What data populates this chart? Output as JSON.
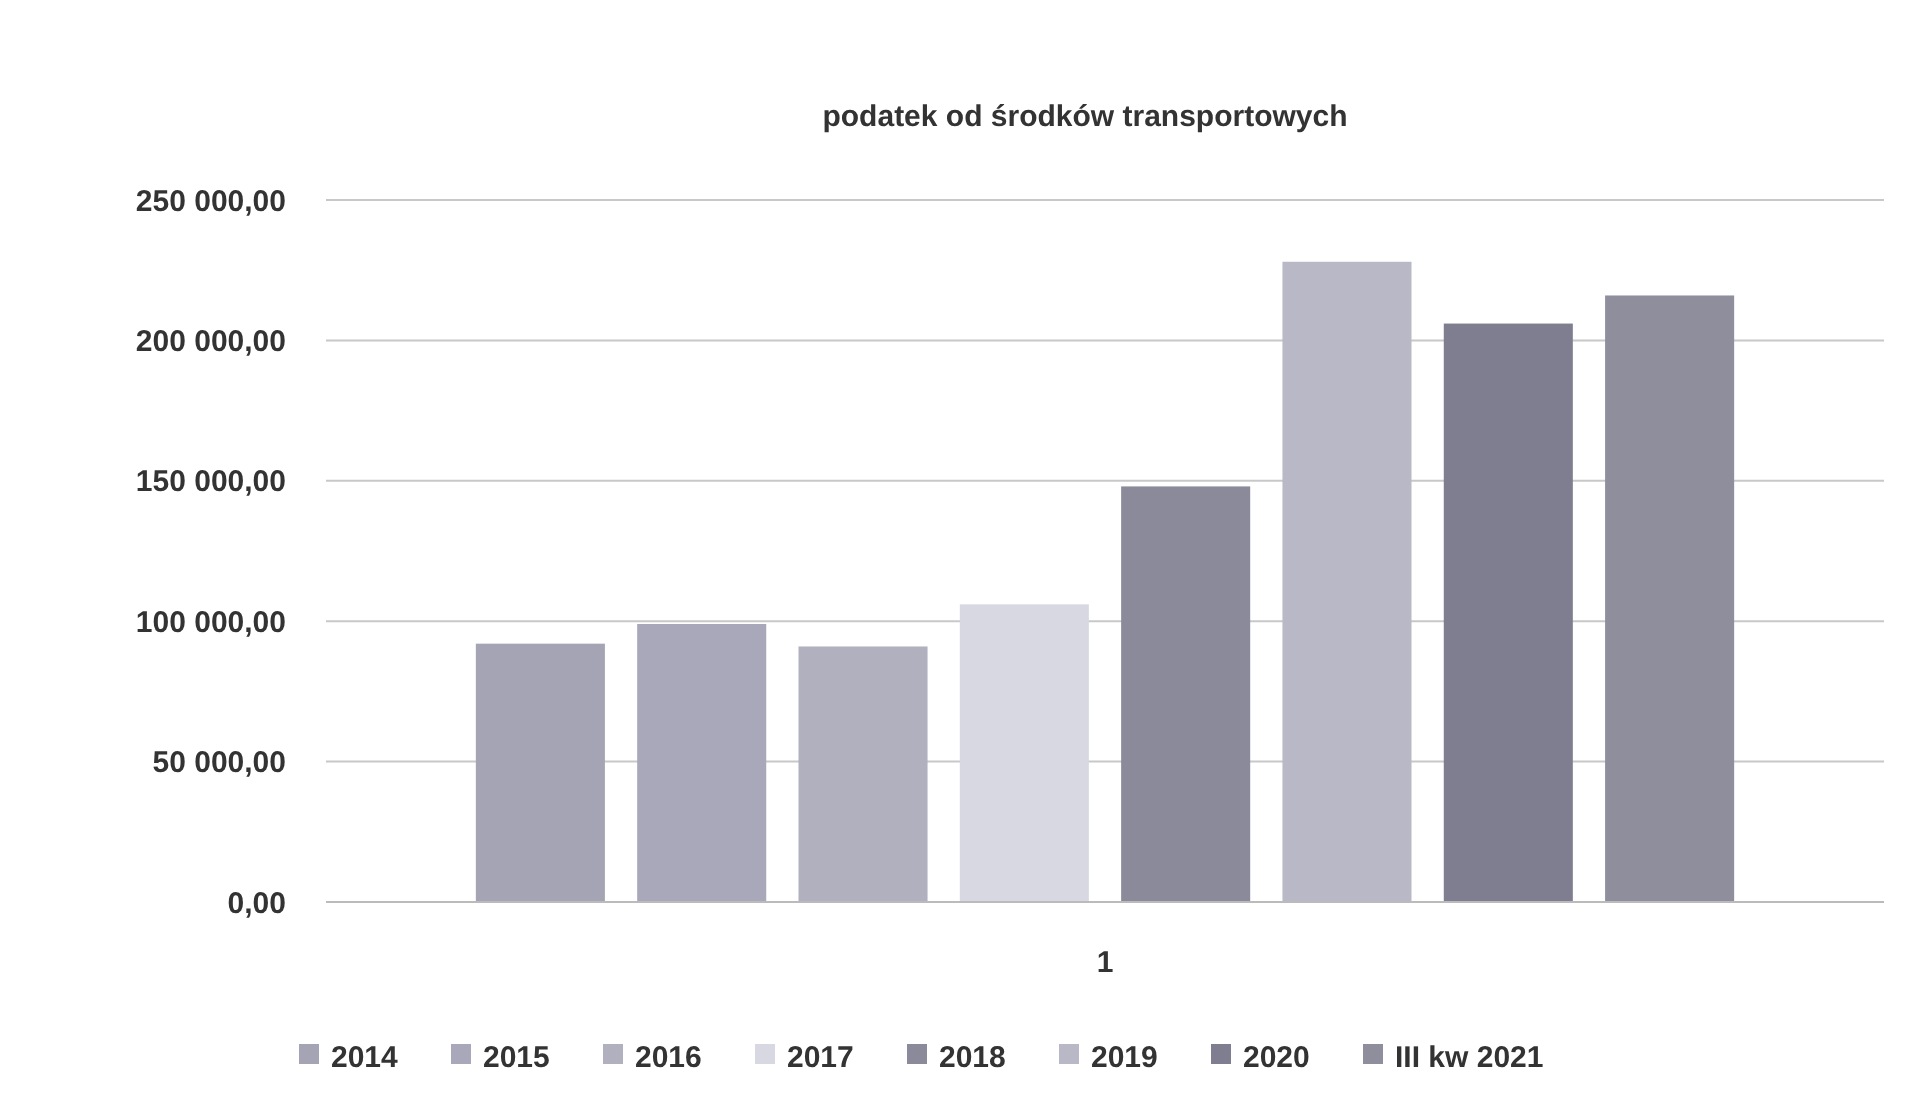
{
  "chart_data": {
    "type": "bar",
    "title": "podatek od środków transportowych",
    "categories": [
      "1"
    ],
    "series": [
      {
        "name": "2014",
        "color": "#a4a4b4",
        "values": [
          92000
        ]
      },
      {
        "name": "2015",
        "color": "#a8a8ba",
        "values": [
          99000
        ]
      },
      {
        "name": "2016",
        "color": "#b0b0be",
        "values": [
          91000
        ]
      },
      {
        "name": "2017",
        "color": "#d8d8e2",
        "values": [
          106000
        ]
      },
      {
        "name": "2018",
        "color": "#8a8a9a",
        "values": [
          148000
        ]
      },
      {
        "name": "2019",
        "color": "#b8b8c6",
        "values": [
          228000
        ]
      },
      {
        "name": "2020",
        "color": "#7e7e90",
        "values": [
          206000
        ]
      },
      {
        "name": "III kw 2021",
        "color": "#8e8e9c",
        "values": [
          216000
        ]
      }
    ],
    "ylim": [
      0,
      250000
    ],
    "yticks": [
      {
        "value": 0,
        "label": "0,00"
      },
      {
        "value": 50000,
        "label": "50 000,00"
      },
      {
        "value": 100000,
        "label": "100 000,00"
      },
      {
        "value": 150000,
        "label": "150 000,00"
      },
      {
        "value": 200000,
        "label": "200 000,00"
      },
      {
        "value": 250000,
        "label": "250 000,00"
      }
    ],
    "grid": "y",
    "legend": "bottom"
  }
}
